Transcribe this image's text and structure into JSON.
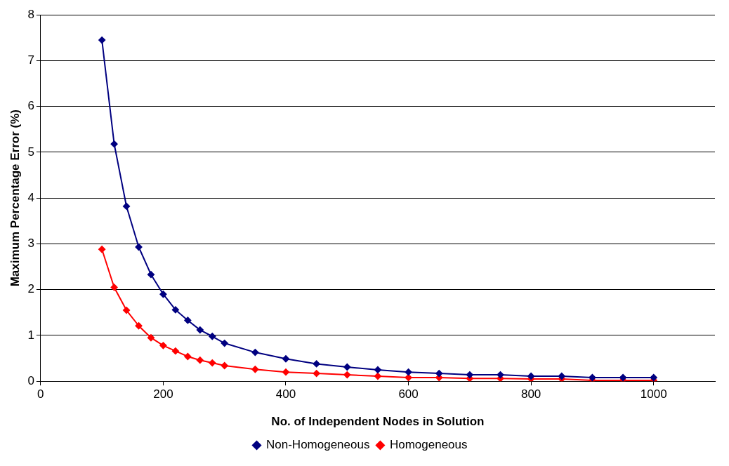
{
  "chart_data": {
    "type": "line",
    "xlabel": "No. of Independent Nodes in Solution",
    "ylabel": "Maximum Percentage Error (%)",
    "x": [
      100,
      120,
      140,
      160,
      180,
      200,
      220,
      240,
      260,
      280,
      300,
      350,
      400,
      450,
      500,
      550,
      600,
      650,
      700,
      750,
      800,
      850,
      900,
      950,
      1000
    ],
    "series": [
      {
        "name": "Non-Homogeneous",
        "color": "#000080",
        "values": [
          7.45,
          5.18,
          3.82,
          2.93,
          2.33,
          1.9,
          1.56,
          1.33,
          1.12,
          0.98,
          0.83,
          0.63,
          0.49,
          0.38,
          0.31,
          0.25,
          0.2,
          0.17,
          0.14,
          0.14,
          0.11,
          0.11,
          0.08,
          0.08,
          0.08
        ]
      },
      {
        "name": "Homogeneous",
        "color": "#ff0000",
        "values": [
          2.88,
          2.05,
          1.55,
          1.21,
          0.95,
          0.78,
          0.66,
          0.54,
          0.46,
          0.4,
          0.34,
          0.26,
          0.2,
          0.17,
          0.14,
          0.11,
          0.08,
          0.08,
          0.06,
          0.06,
          0.05,
          0.05,
          0.02,
          0.02,
          0.02
        ]
      }
    ],
    "xlim": [
      0,
      1100
    ],
    "xticks": [
      0,
      200,
      400,
      600,
      800,
      1000
    ],
    "ylim": [
      0,
      8
    ],
    "yticks": [
      0,
      1,
      2,
      3,
      4,
      5,
      6,
      7,
      8
    ],
    "grid": "y",
    "legend": "bottom",
    "marker": "diamond",
    "line_style": "solid"
  }
}
